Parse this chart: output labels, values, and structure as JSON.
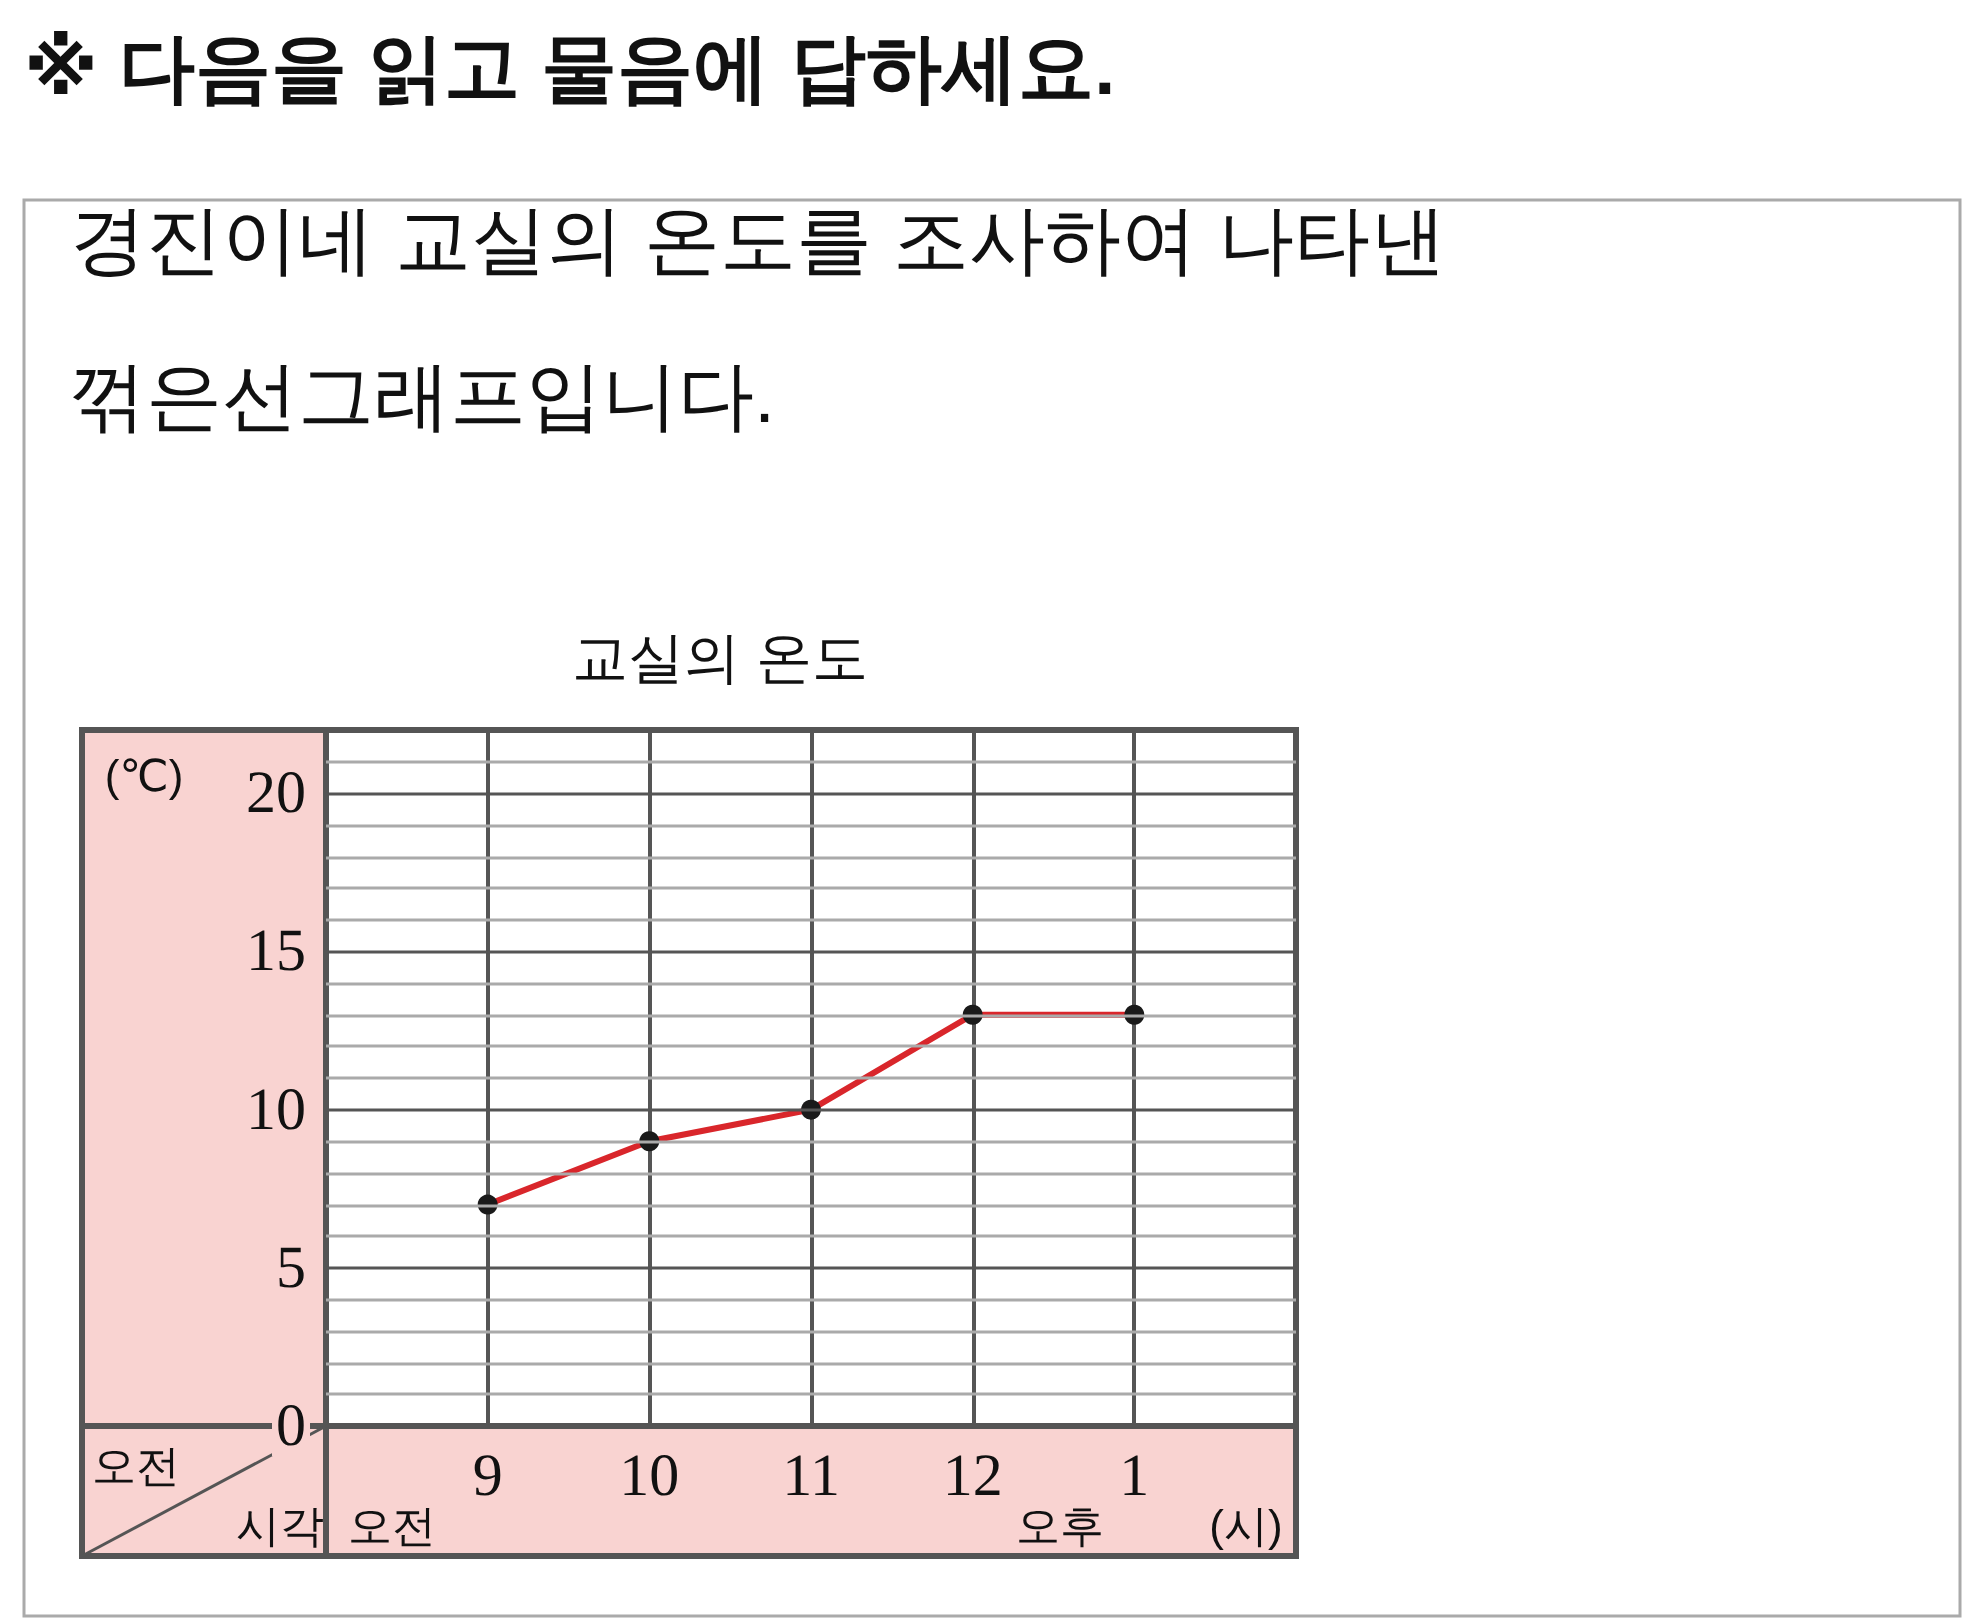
{
  "chart_data": {
    "type": "line",
    "title": "교실의 온도",
    "ylabel": "(℃)",
    "xlabel": "(시)",
    "annotations": [
      "※ 다음을 읽고 물음에 답하세요.",
      "경진이네 교실의 온도를 조사하여 나타낸 꺾은선그래프입니다.",
      "오전",
      "시각",
      "오전",
      "오후"
    ],
    "categories": [
      "9",
      "10",
      "11",
      "12",
      "1"
    ],
    "series": [
      {
        "color": "#d9262b",
        "values": [
          7,
          9,
          10,
          13,
          13
        ]
      }
    ],
    "ylim": [
      0,
      22
    ],
    "yticks": [
      0,
      {
        "value": 1,
        "label": null
      },
      {
        "value": 2,
        "label": null
      },
      {
        "value": 3,
        "label": null
      },
      {
        "value": 4,
        "label": null
      },
      5,
      {
        "value": 6,
        "label": null
      },
      {
        "value": 7,
        "label": null
      },
      {
        "value": 8,
        "label": null
      },
      {
        "value": 9,
        "label": null
      },
      10,
      {
        "value": 11,
        "label": null
      },
      {
        "value": 12,
        "label": null
      },
      {
        "value": 13,
        "label": null
      },
      {
        "value": 14,
        "label": null
      },
      15,
      {
        "value": 16,
        "label": null
      },
      {
        "value": 17,
        "label": null
      },
      {
        "value": 18,
        "label": null
      },
      {
        "value": 19,
        "label": null
      },
      20,
      {
        "value": 21,
        "label": null
      }
    ],
    "grid": true,
    "marker": "circle",
    "line_style": "solid"
  }
}
